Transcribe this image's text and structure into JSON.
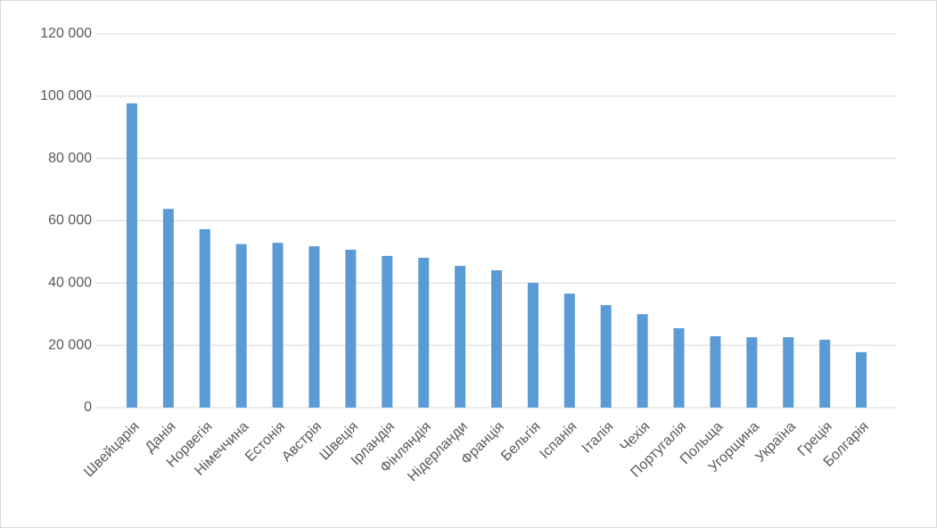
{
  "chart_data": {
    "type": "bar",
    "categories": [
      "Швейцарія",
      "Данія",
      "Норвегія",
      "Німеччина",
      "Естонія",
      "Австрія",
      "Швеція",
      "Ірландія",
      "Фінляндія",
      "Нідерланди",
      "Франція",
      "Бельгія",
      "Іспанія",
      "Італія",
      "Чехія",
      "Португалія",
      "Польща",
      "Угорщина",
      "Україна",
      "Греція",
      "Болгарія"
    ],
    "values": [
      97700,
      63800,
      57300,
      52500,
      52900,
      51800,
      50700,
      48700,
      48100,
      45500,
      44100,
      40100,
      36600,
      32900,
      30000,
      25500,
      22900,
      22600,
      22600,
      21800,
      17800
    ],
    "color": "#5b9bd5",
    "ylim": [
      0,
      120000
    ],
    "yticks": [
      {
        "value": 0,
        "label": "0"
      },
      {
        "value": 20000,
        "label": "20 000"
      },
      {
        "value": 40000,
        "label": "40 000"
      },
      {
        "value": 60000,
        "label": "60 000"
      },
      {
        "value": 80000,
        "label": "80 000"
      },
      {
        "value": 100000,
        "label": "100 000"
      },
      {
        "value": 120000,
        "label": "120 000"
      }
    ],
    "grid": true
  }
}
